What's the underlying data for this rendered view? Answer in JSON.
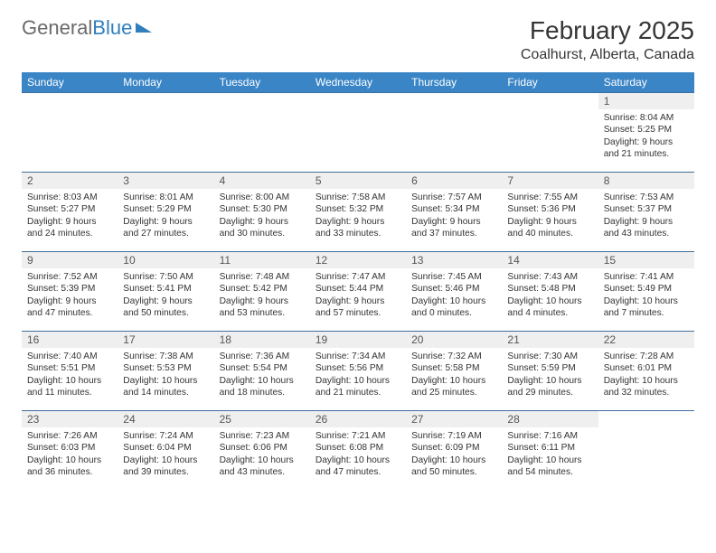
{
  "logo": {
    "text1": "General",
    "text2": "Blue"
  },
  "title": "February 2025",
  "location": "Coalhurst, Alberta, Canada",
  "colors": {
    "header_bg": "#3a85c6",
    "header_fg": "#ffffff",
    "daynum_bg": "#efefef",
    "row_border": "#3e6f9c",
    "logo_gray": "#6a6a6a",
    "logo_blue": "#2f7fbf"
  },
  "days_of_week": [
    "Sunday",
    "Monday",
    "Tuesday",
    "Wednesday",
    "Thursday",
    "Friday",
    "Saturday"
  ],
  "weeks": [
    [
      null,
      null,
      null,
      null,
      null,
      null,
      {
        "n": "1",
        "sunrise": "8:04 AM",
        "sunset": "5:25 PM",
        "dl": "9 hours and 21 minutes."
      }
    ],
    [
      {
        "n": "2",
        "sunrise": "8:03 AM",
        "sunset": "5:27 PM",
        "dl": "9 hours and 24 minutes."
      },
      {
        "n": "3",
        "sunrise": "8:01 AM",
        "sunset": "5:29 PM",
        "dl": "9 hours and 27 minutes."
      },
      {
        "n": "4",
        "sunrise": "8:00 AM",
        "sunset": "5:30 PM",
        "dl": "9 hours and 30 minutes."
      },
      {
        "n": "5",
        "sunrise": "7:58 AM",
        "sunset": "5:32 PM",
        "dl": "9 hours and 33 minutes."
      },
      {
        "n": "6",
        "sunrise": "7:57 AM",
        "sunset": "5:34 PM",
        "dl": "9 hours and 37 minutes."
      },
      {
        "n": "7",
        "sunrise": "7:55 AM",
        "sunset": "5:36 PM",
        "dl": "9 hours and 40 minutes."
      },
      {
        "n": "8",
        "sunrise": "7:53 AM",
        "sunset": "5:37 PM",
        "dl": "9 hours and 43 minutes."
      }
    ],
    [
      {
        "n": "9",
        "sunrise": "7:52 AM",
        "sunset": "5:39 PM",
        "dl": "9 hours and 47 minutes."
      },
      {
        "n": "10",
        "sunrise": "7:50 AM",
        "sunset": "5:41 PM",
        "dl": "9 hours and 50 minutes."
      },
      {
        "n": "11",
        "sunrise": "7:48 AM",
        "sunset": "5:42 PM",
        "dl": "9 hours and 53 minutes."
      },
      {
        "n": "12",
        "sunrise": "7:47 AM",
        "sunset": "5:44 PM",
        "dl": "9 hours and 57 minutes."
      },
      {
        "n": "13",
        "sunrise": "7:45 AM",
        "sunset": "5:46 PM",
        "dl": "10 hours and 0 minutes."
      },
      {
        "n": "14",
        "sunrise": "7:43 AM",
        "sunset": "5:48 PM",
        "dl": "10 hours and 4 minutes."
      },
      {
        "n": "15",
        "sunrise": "7:41 AM",
        "sunset": "5:49 PM",
        "dl": "10 hours and 7 minutes."
      }
    ],
    [
      {
        "n": "16",
        "sunrise": "7:40 AM",
        "sunset": "5:51 PM",
        "dl": "10 hours and 11 minutes."
      },
      {
        "n": "17",
        "sunrise": "7:38 AM",
        "sunset": "5:53 PM",
        "dl": "10 hours and 14 minutes."
      },
      {
        "n": "18",
        "sunrise": "7:36 AM",
        "sunset": "5:54 PM",
        "dl": "10 hours and 18 minutes."
      },
      {
        "n": "19",
        "sunrise": "7:34 AM",
        "sunset": "5:56 PM",
        "dl": "10 hours and 21 minutes."
      },
      {
        "n": "20",
        "sunrise": "7:32 AM",
        "sunset": "5:58 PM",
        "dl": "10 hours and 25 minutes."
      },
      {
        "n": "21",
        "sunrise": "7:30 AM",
        "sunset": "5:59 PM",
        "dl": "10 hours and 29 minutes."
      },
      {
        "n": "22",
        "sunrise": "7:28 AM",
        "sunset": "6:01 PM",
        "dl": "10 hours and 32 minutes."
      }
    ],
    [
      {
        "n": "23",
        "sunrise": "7:26 AM",
        "sunset": "6:03 PM",
        "dl": "10 hours and 36 minutes."
      },
      {
        "n": "24",
        "sunrise": "7:24 AM",
        "sunset": "6:04 PM",
        "dl": "10 hours and 39 minutes."
      },
      {
        "n": "25",
        "sunrise": "7:23 AM",
        "sunset": "6:06 PM",
        "dl": "10 hours and 43 minutes."
      },
      {
        "n": "26",
        "sunrise": "7:21 AM",
        "sunset": "6:08 PM",
        "dl": "10 hours and 47 minutes."
      },
      {
        "n": "27",
        "sunrise": "7:19 AM",
        "sunset": "6:09 PM",
        "dl": "10 hours and 50 minutes."
      },
      {
        "n": "28",
        "sunrise": "7:16 AM",
        "sunset": "6:11 PM",
        "dl": "10 hours and 54 minutes."
      },
      null
    ]
  ],
  "labels": {
    "sunrise": "Sunrise: ",
    "sunset": "Sunset: ",
    "daylight": "Daylight: "
  }
}
